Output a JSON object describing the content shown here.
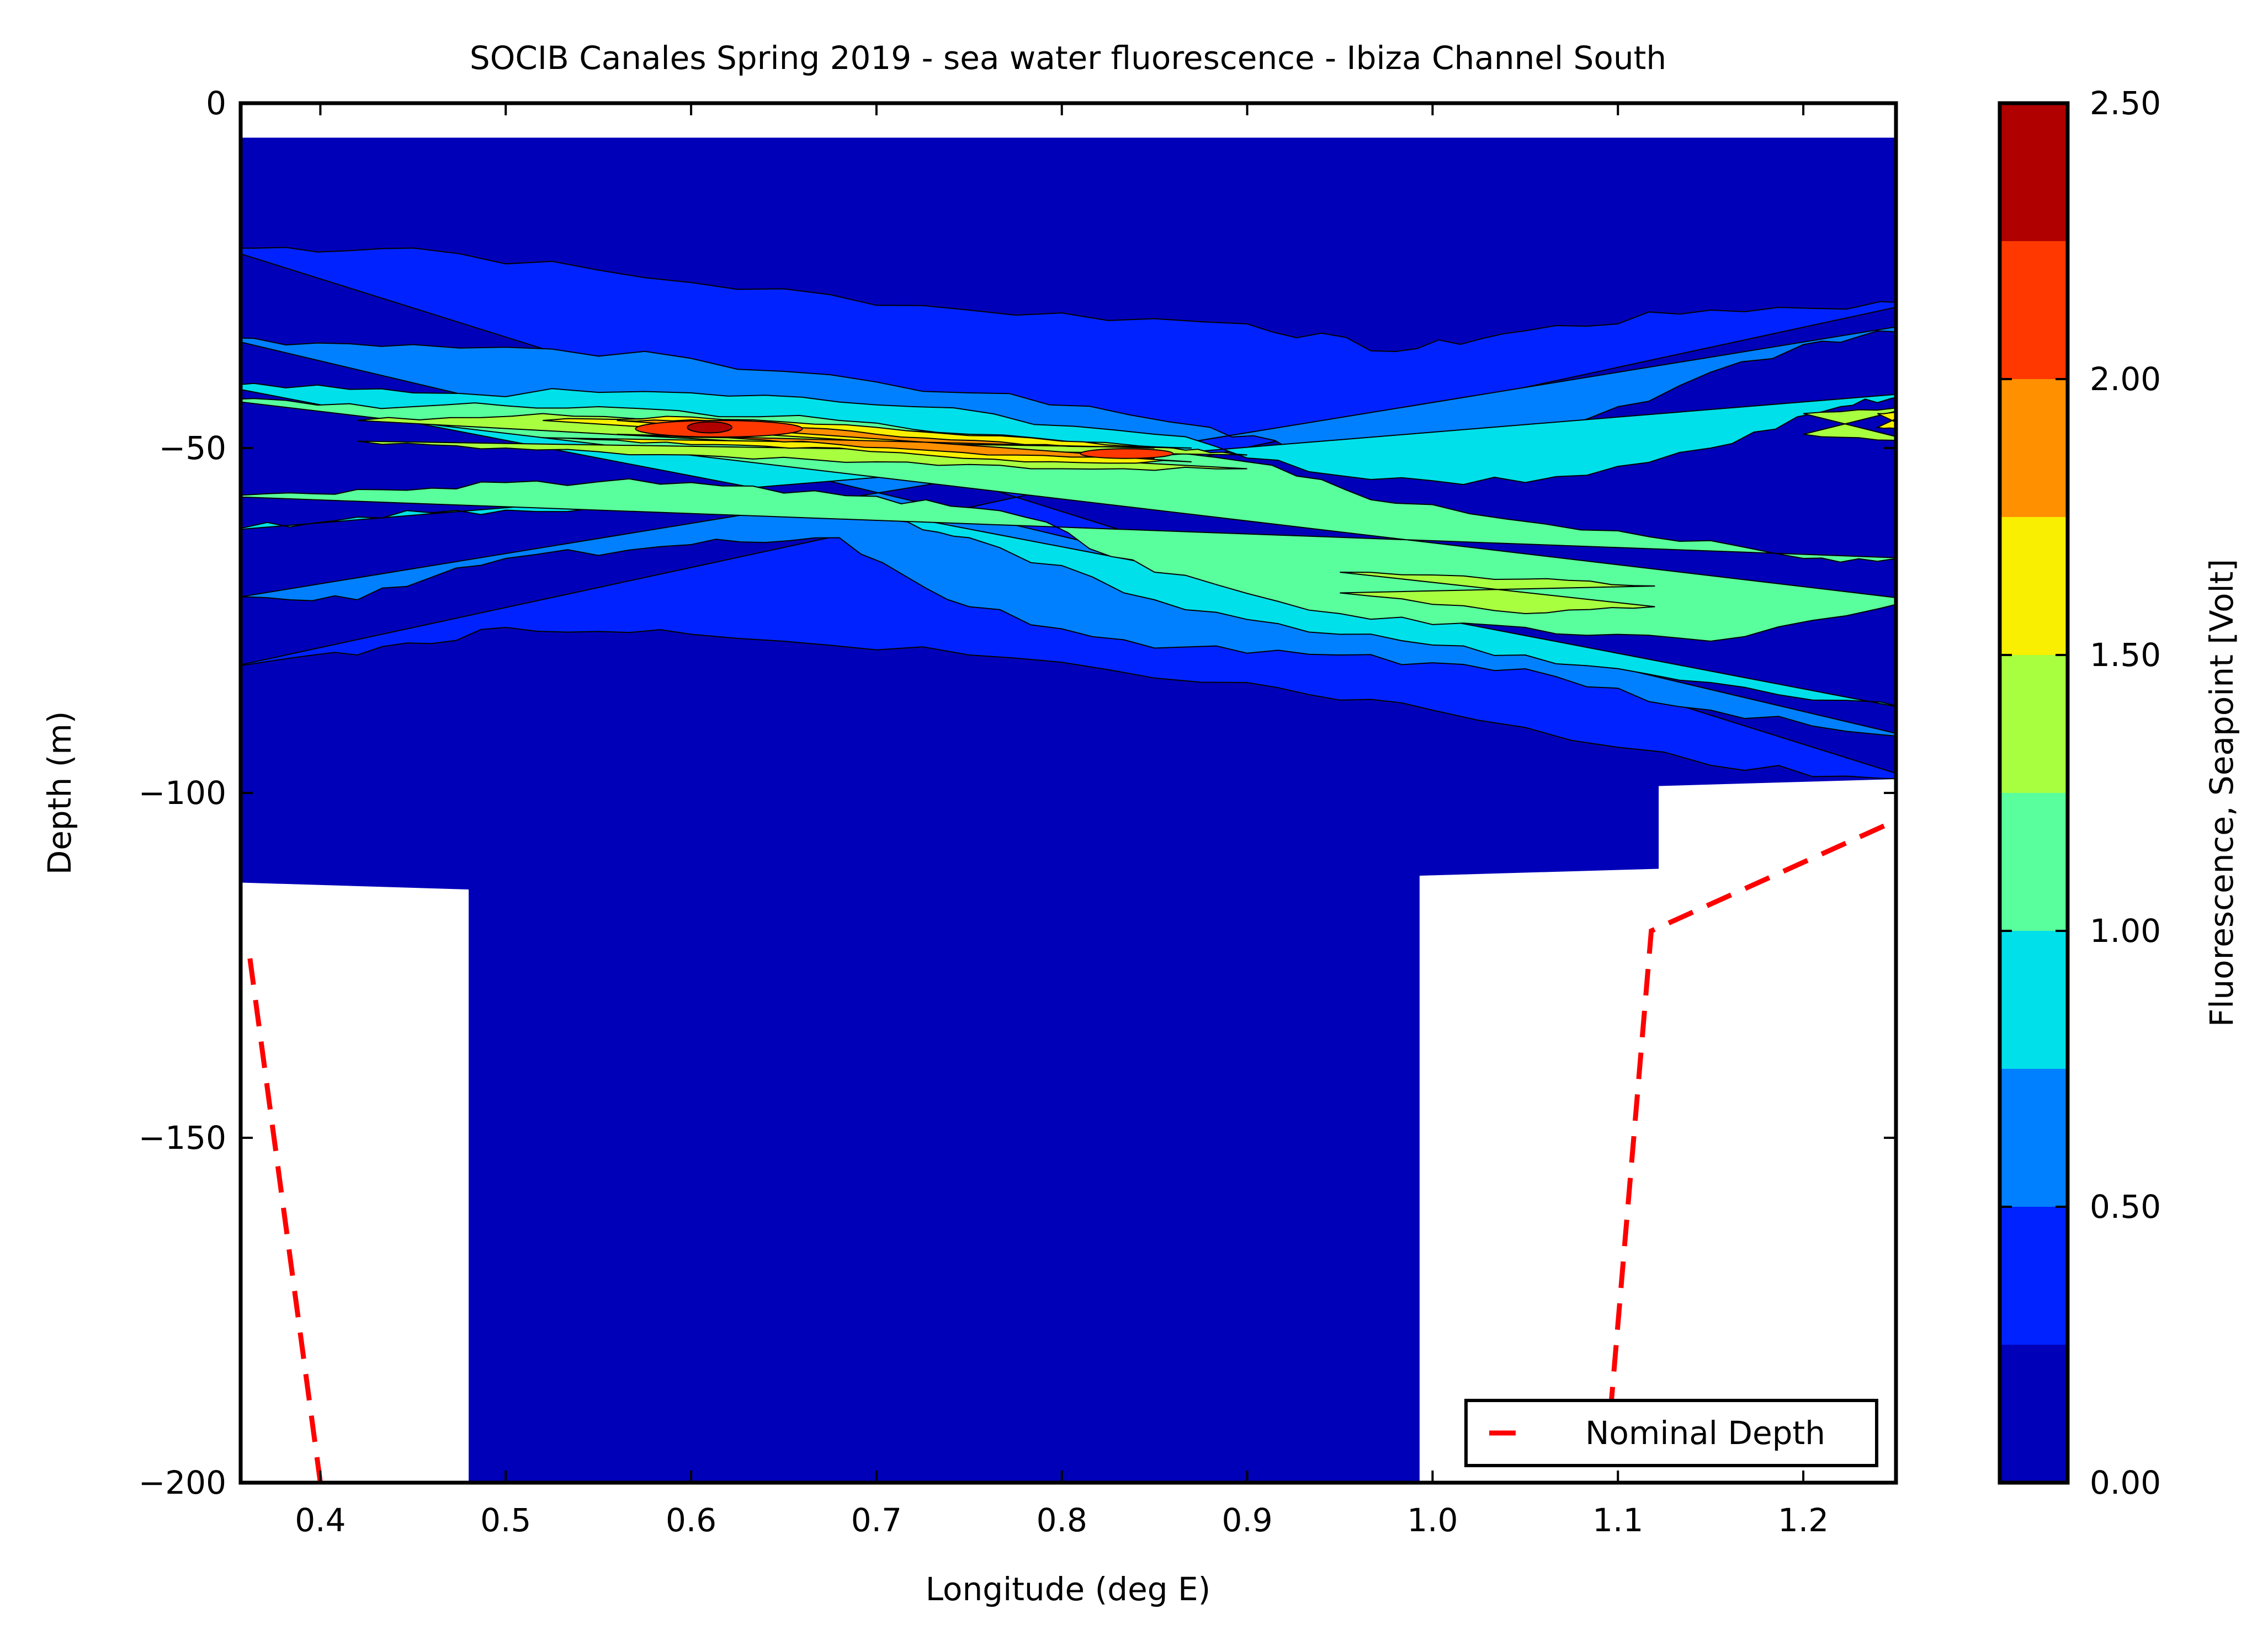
{
  "chart_data": {
    "type": "contour",
    "title": "SOCIB Canales Spring 2019 - sea water fluorescence  -  Ibiza Channel South",
    "xlabel": "Longitude (deg E)",
    "ylabel": "Depth (m)",
    "xlim": [
      0.357,
      1.25
    ],
    "ylim": [
      -200,
      0
    ],
    "xticks": [
      0.4,
      0.5,
      0.6,
      0.7,
      0.8,
      0.9,
      1.0,
      1.1,
      1.2
    ],
    "xtick_labels": [
      "0.4",
      "0.5",
      "0.6",
      "0.7",
      "0.8",
      "0.9",
      "1.0",
      "1.1",
      "1.2"
    ],
    "yticks": [
      0,
      -50,
      -100,
      -150,
      -200
    ],
    "ytick_labels": [
      "0",
      "−50",
      "−100",
      "−150",
      "−200"
    ],
    "colorbar": {
      "label": "Fluorescence, Seapoint [Volt]",
      "min": 0.0,
      "max": 2.5,
      "levels": [
        0.0,
        0.25,
        0.5,
        0.75,
        1.0,
        1.25,
        1.5,
        1.75,
        2.0,
        2.25,
        2.5
      ],
      "tick_values": [
        0.0,
        0.5,
        1.0,
        1.5,
        2.0,
        2.5
      ],
      "tick_labels": [
        "0.00",
        "0.50",
        "1.00",
        "1.50",
        "2.00",
        "2.50"
      ],
      "colors": [
        "#0000b8",
        "#0022ff",
        "#0080ff",
        "#00e0ea",
        "#58ff9c",
        "#a8ff40",
        "#f8f000",
        "#ff9000",
        "#ff3800",
        "#b00000"
      ]
    },
    "grid": false,
    "legend": {
      "position": "lower-right",
      "entries": [
        "Nominal Depth"
      ]
    },
    "series": [
      {
        "name": "Nominal Depth",
        "style": "dashed",
        "color": "#ff0000",
        "segments": [
          {
            "x": [
              0.362,
              0.4
            ],
            "y": [
              -124,
              -200
            ]
          },
          {
            "x": [
              1.094,
              1.118,
              1.25
            ],
            "y": [
              -196,
              -120,
              -104
            ]
          }
        ]
      }
    ],
    "data_coverage": {
      "top_depth": -5,
      "bottom_profile": {
        "x": [
          0.357,
          0.48,
          0.48,
          0.993,
          0.993,
          1.122,
          1.122,
          1.25
        ],
        "y": [
          -113,
          -114,
          -200,
          -200,
          -112,
          -111,
          -99,
          -98
        ]
      }
    },
    "features": [
      {
        "level": 0.25,
        "x": [
          0.357,
          1.25
        ],
        "y": [
          -22,
          -30
        ],
        "desc": "upper boundary of >0.25 V layer"
      },
      {
        "level": 0.5,
        "x": [
          0.357,
          1.25
        ],
        "y": [
          -34,
          -32
        ],
        "desc": "upper boundary of >0.5 V layer"
      },
      {
        "level": 1.0,
        "x": [
          0.357,
          1.25
        ],
        "y": [
          -42,
          -40
        ],
        "desc": "upper boundary of >1.0 V layer"
      },
      {
        "level": 2.25,
        "x": [
          0.61
        ],
        "y": [
          -47
        ],
        "desc": "fluorescence maximum core"
      },
      {
        "level": 2.0,
        "x": [
          0.83
        ],
        "y": [
          -51
        ],
        "desc": "secondary maximum"
      },
      {
        "level": 1.25,
        "x": [
          0.98,
          1.12
        ],
        "y": [
          -70,
          -72
        ],
        "desc": "deep chlorophyll layer east"
      },
      {
        "level": 0.25,
        "x": [
          0.357,
          1.25
        ],
        "y": [
          -82,
          -98
        ],
        "desc": "lower boundary of >0.25 V layer"
      }
    ]
  }
}
